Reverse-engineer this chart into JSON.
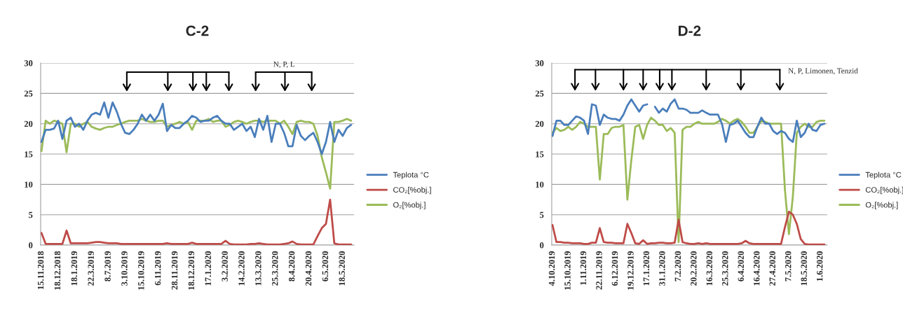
{
  "chart_data": [
    {
      "type": "line",
      "title": "C-2",
      "categories": [
        "15.11.2018",
        null,
        null,
        null,
        "18.12.2018",
        null,
        null,
        null,
        "18.1.2019",
        null,
        null,
        null,
        "22.3.2019",
        null,
        null,
        null,
        "8.7.2019",
        null,
        null,
        null,
        "3.10.2019",
        null,
        null,
        null,
        "15.10.2019",
        null,
        null,
        null,
        "6.11.2019",
        null,
        null,
        null,
        "28.11.2019",
        null,
        null,
        null,
        "18.12.2019",
        null,
        null,
        null,
        "17.1.2020",
        null,
        null,
        null,
        "3.2.2020",
        null,
        null,
        null,
        "14.2.2020",
        null,
        null,
        null,
        "13.3.2020",
        null,
        null,
        null,
        "25.3.2020",
        null,
        null,
        null,
        "8.4.2020",
        null,
        null,
        null,
        "20.4.2020",
        null,
        null,
        null,
        "6.5.2020",
        null,
        null,
        null,
        "18.5.2020",
        null,
        null
      ],
      "series": [
        {
          "name": "Teplota °C",
          "color": "#4a7ebb",
          "values": [
            17,
            19,
            19,
            19.2,
            20.5,
            17.5,
            20.5,
            21,
            19.5,
            20,
            19,
            20.5,
            21.5,
            21.8,
            21.5,
            23.5,
            21,
            23.5,
            22,
            20,
            18.5,
            18.3,
            19,
            20,
            21.5,
            20.5,
            21.5,
            20.5,
            21.5,
            23.3,
            18.8,
            19.8,
            19.3,
            19.3,
            20,
            20.5,
            21.3,
            21,
            20.3,
            20.5,
            20.5,
            21,
            21.3,
            20.5,
            20,
            20,
            19,
            19.5,
            20,
            18.8,
            19.5,
            17.8,
            20.8,
            19,
            21.3,
            17,
            20,
            20,
            18.5,
            16.3,
            16.3,
            19.8,
            18,
            17.3,
            18,
            18.5,
            17,
            15,
            17,
            20.3,
            17,
            19,
            18,
            19.3,
            19.8
          ]
        },
        {
          "name": "CO₂[%obj.]",
          "color": "#be4b48",
          "values": [
            2,
            0.2,
            0.2,
            0.2,
            0.2,
            0.2,
            2.4,
            0.3,
            0.3,
            0.3,
            0.3,
            0.3,
            0.4,
            0.5,
            0.5,
            0.4,
            0.3,
            0.3,
            0.3,
            0.2,
            0.2,
            0.2,
            0.2,
            0.2,
            0.2,
            0.2,
            0.2,
            0.2,
            0.2,
            0.2,
            0.3,
            0.2,
            0.2,
            0.2,
            0.2,
            0.2,
            0.4,
            0.2,
            0.2,
            0.2,
            0.2,
            0.2,
            0.2,
            0.2,
            0.7,
            0.2,
            0.1,
            0.1,
            0.1,
            0.1,
            0.2,
            0.2,
            0.3,
            0.2,
            0.1,
            0.1,
            0.1,
            0.1,
            0.2,
            0.3,
            0.6,
            0.2,
            0.1,
            0.1,
            0.1,
            0.1,
            1.5,
            2.8,
            3.5,
            7.5,
            0.3,
            0.1,
            0.1,
            0.1,
            0.1
          ]
        },
        {
          "name": "O₂[%obj.]",
          "color": "#9bbb59",
          "values": [
            15.5,
            20.5,
            20,
            20.5,
            20.3,
            20,
            15.3,
            20,
            20,
            19.5,
            20,
            20.3,
            19.5,
            19.2,
            19,
            19.3,
            19.5,
            19.5,
            19.8,
            20,
            20.3,
            20.5,
            20.5,
            20.5,
            20.8,
            20.5,
            20.3,
            20.3,
            20.5,
            20.5,
            19.5,
            19.8,
            20,
            20.3,
            20,
            20.3,
            19,
            20.5,
            20.5,
            20.5,
            20.8,
            20.3,
            20.5,
            20.5,
            19.5,
            19.8,
            20.3,
            20.5,
            20.3,
            20,
            20.3,
            20.5,
            20.5,
            20.3,
            20.5,
            20.5,
            20.5,
            20,
            20.5,
            19.5,
            18.3,
            20.3,
            20.5,
            20.3,
            20.3,
            20,
            18,
            14.5,
            12,
            9.3,
            20.3,
            20.3,
            20.5,
            20.8,
            20.5
          ]
        }
      ],
      "ylim": [
        0,
        30
      ],
      "yticks": [
        0,
        5,
        10,
        15,
        20,
        25,
        30
      ],
      "grid": "y",
      "legend": "right",
      "annotations": [
        "N, P, L"
      ]
    },
    {
      "type": "line",
      "title": "D-2",
      "categories": [
        "4.10.2019",
        null,
        null,
        null,
        "15.10.2019",
        null,
        null,
        null,
        "1.11.2019",
        null,
        null,
        null,
        "22.11.2019",
        null,
        null,
        null,
        "6.12.2019",
        null,
        null,
        null,
        "19.12.2019",
        null,
        null,
        null,
        "17.1.2020",
        null,
        null,
        null,
        "31.1.2020",
        null,
        null,
        null,
        "7.2.2020",
        null,
        null,
        null,
        "20.2.2020",
        null,
        null,
        null,
        "16.3.2020",
        null,
        null,
        null,
        "25.3.2020",
        null,
        null,
        null,
        "6.4.2020",
        null,
        null,
        null,
        "16.4.2020",
        null,
        null,
        null,
        "27.4.2020",
        null,
        null,
        null,
        "7.5.2020",
        null,
        null,
        null,
        "18.5.2020",
        null,
        null,
        null,
        "1.6.2020",
        null
      ],
      "series": [
        {
          "name": "Teplota °C",
          "color": "#4a7ebb",
          "values": [
            18,
            20.5,
            20.5,
            19.8,
            19.8,
            20.5,
            21.2,
            21,
            20.5,
            18.3,
            23.2,
            23,
            19.8,
            21.5,
            21,
            20.8,
            20.8,
            20.5,
            21.5,
            23,
            24,
            23,
            22,
            23,
            23.2,
            null,
            22.8,
            21.8,
            22.5,
            22,
            23.3,
            24,
            22.5,
            22.5,
            22.3,
            21.8,
            21.8,
            21.8,
            22.2,
            21.8,
            21.5,
            21.5,
            21.5,
            20,
            17,
            19.8,
            20,
            20.5,
            19.5,
            18.5,
            17.8,
            17.8,
            19.5,
            21,
            20,
            20,
            18.8,
            18.3,
            18.8,
            18.5,
            17.5,
            17,
            20.5,
            17.8,
            18.5,
            20,
            19,
            18.8,
            19.8,
            20
          ]
        },
        {
          "name": "CO₂[%obj.]",
          "color": "#be4b48",
          "values": [
            3.3,
            0.5,
            0.5,
            0.4,
            0.4,
            0.3,
            0.3,
            0.3,
            0.2,
            0.2,
            0.4,
            0.4,
            2.8,
            0.5,
            0.4,
            0.4,
            0.3,
            0.3,
            0.3,
            3.5,
            2,
            0.3,
            0.2,
            0.8,
            0.2,
            0.3,
            0.3,
            0.4,
            0.4,
            0.3,
            0.3,
            0.4,
            4.2,
            0.5,
            0.3,
            0.2,
            0.2,
            0.3,
            0.2,
            0.3,
            0.2,
            0.2,
            0.2,
            0.2,
            0.2,
            0.2,
            0.2,
            0.2,
            0.3,
            0.7,
            0.3,
            0.2,
            0.2,
            0.2,
            0.2,
            0.2,
            0.2,
            0.2,
            0.2,
            3,
            5.5,
            5,
            3.5,
            1,
            0.2,
            0.1,
            0.1,
            0.1,
            0.1,
            0.1
          ]
        },
        {
          "name": "O₂[%obj.]",
          "color": "#9bbb59",
          "values": [
            18.5,
            19.3,
            18.8,
            19,
            19.5,
            19,
            19.5,
            20.3,
            20,
            19.5,
            19.5,
            19.5,
            10.8,
            18.3,
            18.3,
            19.3,
            19.5,
            19.5,
            19.8,
            7.5,
            14,
            19.5,
            19.8,
            17.5,
            19.8,
            21,
            20.5,
            19.8,
            19.8,
            18.8,
            19.3,
            18.5,
            0.5,
            19,
            19.5,
            19.5,
            20,
            20.3,
            20,
            20,
            20,
            20,
            20.3,
            20.8,
            20.5,
            20,
            20.5,
            20.8,
            20.3,
            19.5,
            18.5,
            18.5,
            19.5,
            20.5,
            20.3,
            20,
            20,
            20,
            20,
            9,
            1.8,
            8,
            18.5,
            19.5,
            20,
            19.5,
            19.5,
            20.3,
            20.5,
            20.5
          ]
        }
      ],
      "ylim": [
        0,
        30
      ],
      "yticks": [
        0,
        5,
        10,
        15,
        20,
        25,
        30
      ],
      "grid": "y",
      "legend": "right",
      "annotations": [
        "N, P, Limonen, Tenzid"
      ]
    }
  ]
}
